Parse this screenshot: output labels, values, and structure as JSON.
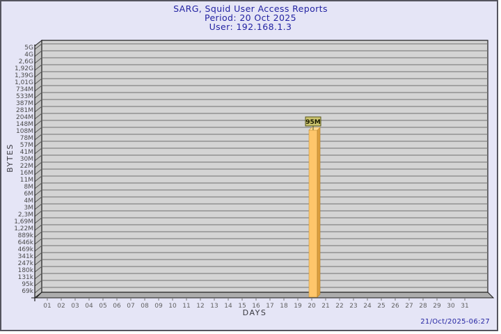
{
  "chart_data": {
    "type": "bar",
    "title": "SARG, Squid User Access Reports",
    "subtitle_period": "Period: 20 Oct 2025",
    "subtitle_user": "User: 192.168.1.3",
    "xlabel": "DAYS",
    "ylabel": "BYTES",
    "x_categories": [
      "01",
      "02",
      "03",
      "04",
      "05",
      "06",
      "07",
      "08",
      "09",
      "10",
      "11",
      "12",
      "13",
      "14",
      "15",
      "16",
      "17",
      "18",
      "19",
      "20",
      "21",
      "22",
      "23",
      "24",
      "25",
      "26",
      "27",
      "28",
      "29",
      "30",
      "31"
    ],
    "y_tick_labels": [
      "5G",
      "4G",
      "2,6G",
      "1,92G",
      "1,39G",
      "1,01G",
      "734M",
      "533M",
      "387M",
      "281M",
      "204M",
      "148M",
      "108M",
      "78M",
      "57M",
      "41M",
      "30M",
      "22M",
      "16M",
      "11M",
      "8M",
      "6M",
      "4M",
      "3M",
      "2,3M",
      "1,69M",
      "1,22M",
      "889k",
      "646k",
      "469k",
      "341k",
      "247k",
      "180k",
      "131k",
      "95k",
      "69k"
    ],
    "y_scale": "log",
    "grid": true,
    "bars": [
      {
        "day": "20",
        "value_label": "95M"
      }
    ],
    "timestamp": "21/Oct/2025-06:27",
    "colors": {
      "page_bg": "#e5e5f6",
      "title_text": "#2222a2",
      "plot_bg": "#d4d4d4",
      "grid_line": "#6f6f6f",
      "plot_outline": "#1a1a1a",
      "wall_fill": "#c2c2c2",
      "wall_line": "#555555",
      "floor_fill": "#adadad",
      "tick_text": "#5a5a5a",
      "axis_title_text": "#38383f",
      "bar_front": "#ffc66b",
      "bar_side": "#dd9f3e",
      "bar_top": "#ffda93",
      "bar_label_bg": "#ccc46e",
      "bar_label_border": "#55551a",
      "bar_label_text": "#1a1a00"
    }
  }
}
